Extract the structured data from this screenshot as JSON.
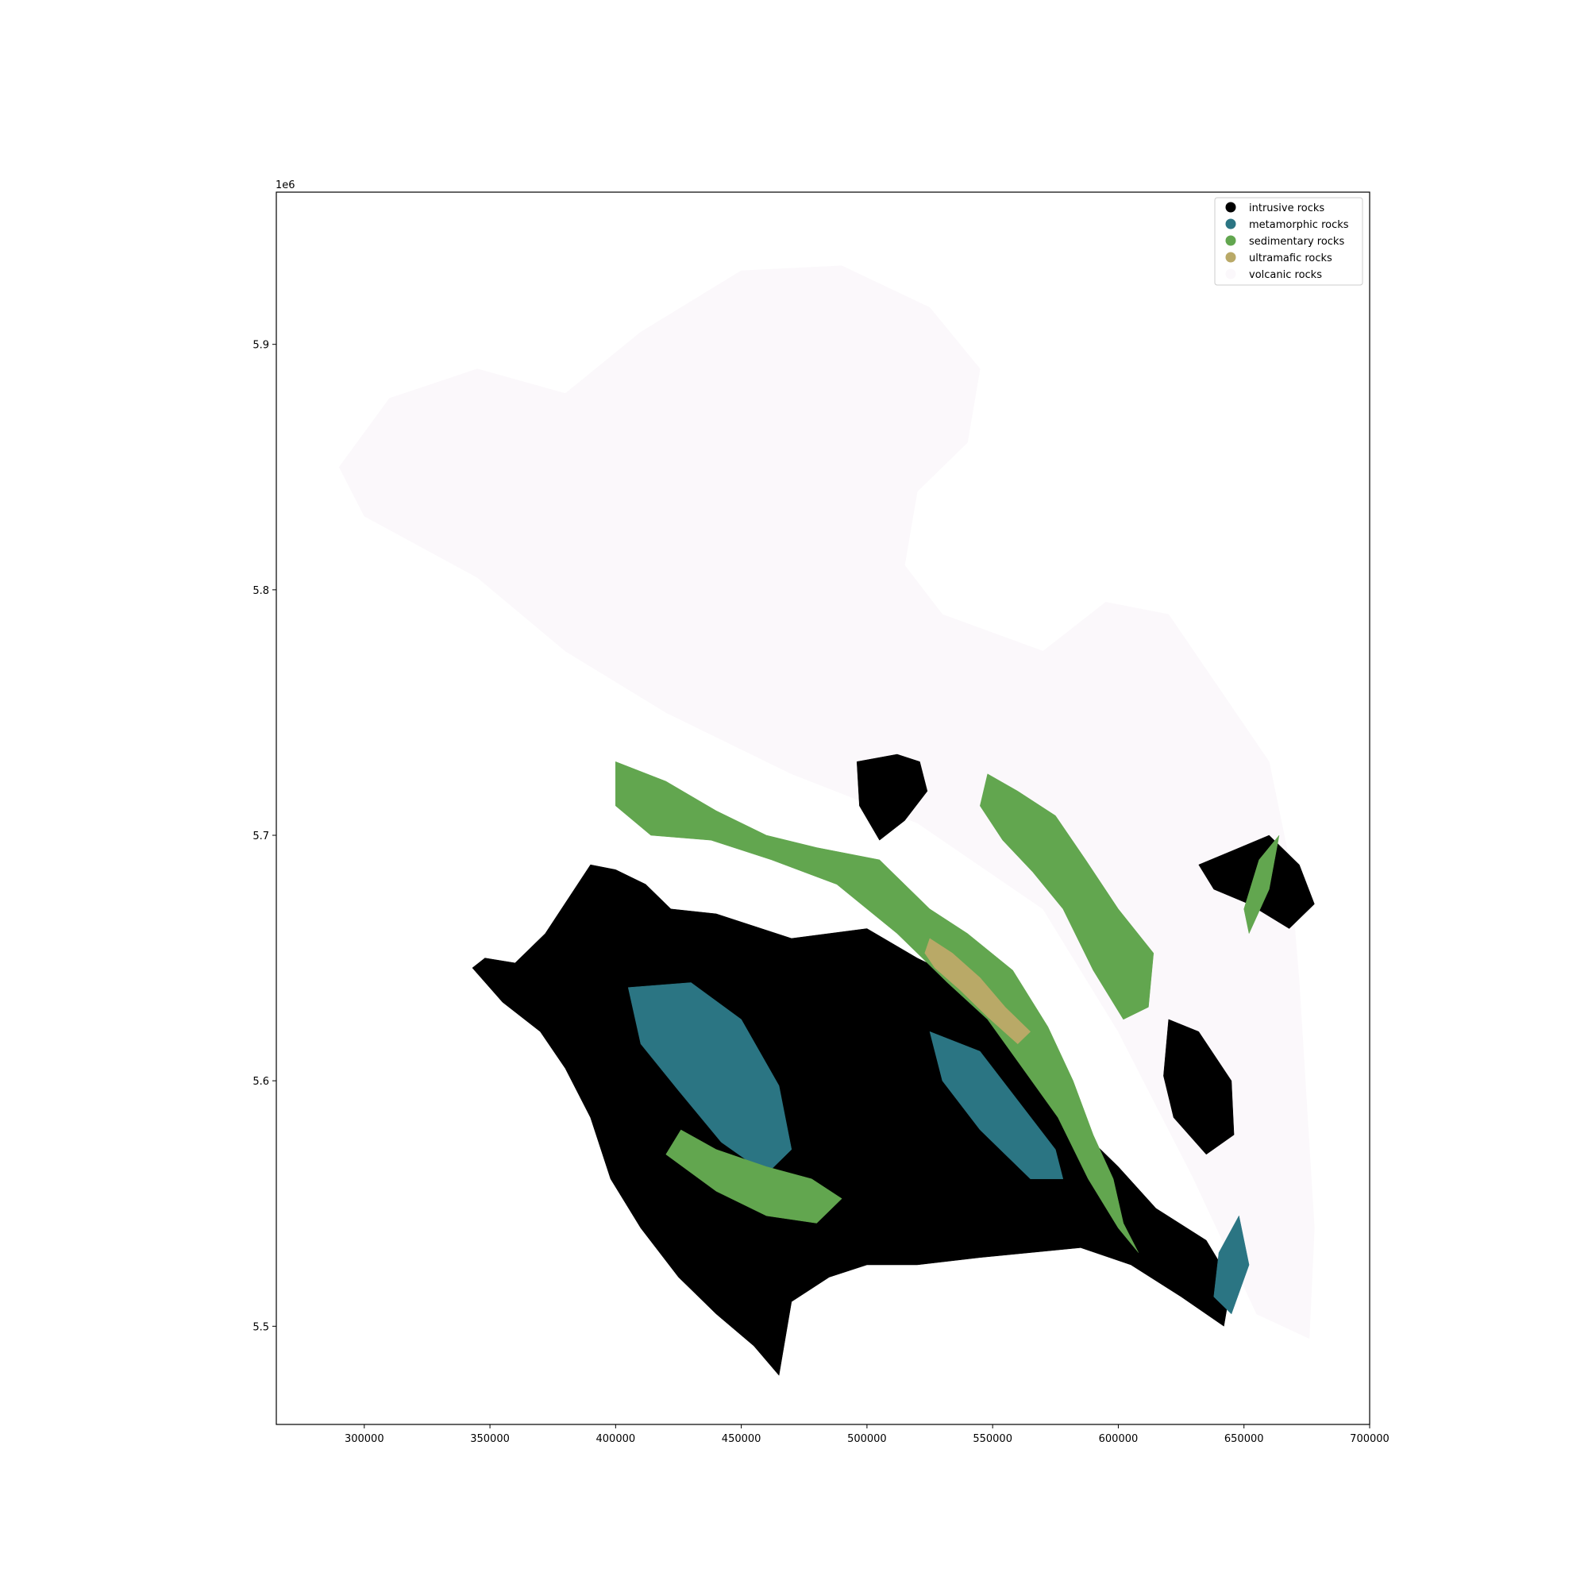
{
  "chart_data": {
    "type": "map",
    "xlim": [
      265000,
      700000
    ],
    "ylim": [
      5460000,
      5962000
    ],
    "x_ticks": [
      {
        "value": 300000,
        "label": "300000"
      },
      {
        "value": 350000,
        "label": "350000"
      },
      {
        "value": 400000,
        "label": "400000"
      },
      {
        "value": 450000,
        "label": "450000"
      },
      {
        "value": 500000,
        "label": "500000"
      },
      {
        "value": 550000,
        "label": "550000"
      },
      {
        "value": 600000,
        "label": "600000"
      },
      {
        "value": 650000,
        "label": "650000"
      },
      {
        "value": 700000,
        "label": "700000"
      }
    ],
    "y_ticks": [
      {
        "value": 5500000,
        "label": "5.5"
      },
      {
        "value": 5600000,
        "label": "5.6"
      },
      {
        "value": 5700000,
        "label": "5.7"
      },
      {
        "value": 5800000,
        "label": "5.8"
      },
      {
        "value": 5900000,
        "label": "5.9"
      }
    ],
    "y_offset_label": "1e6",
    "grid": false,
    "legend_position": "top-right",
    "legend": [
      {
        "label": "intrusive rocks",
        "color": "#000000"
      },
      {
        "label": "metamorphic rocks",
        "color": "#2b7583"
      },
      {
        "label": "sedimentary rocks",
        "color": "#62a64f"
      },
      {
        "label": "ultramafic rocks",
        "color": "#b9a967"
      },
      {
        "label": "volcanic rocks",
        "color": "#fbf8fb"
      }
    ],
    "units": [
      {
        "class": "volcanic rocks",
        "color": "#fbf8fb",
        "rings": [
          [
            [
              290000,
              5850000
            ],
            [
              310000,
              5878000
            ],
            [
              345000,
              5890000
            ],
            [
              380000,
              5880000
            ],
            [
              410000,
              5905000
            ],
            [
              450000,
              5930000
            ],
            [
              490000,
              5932000
            ],
            [
              525000,
              5915000
            ],
            [
              545000,
              5890000
            ],
            [
              540000,
              5860000
            ],
            [
              520000,
              5840000
            ],
            [
              515000,
              5810000
            ],
            [
              530000,
              5790000
            ],
            [
              570000,
              5775000
            ],
            [
              595000,
              5795000
            ],
            [
              620000,
              5790000
            ],
            [
              640000,
              5760000
            ],
            [
              660000,
              5730000
            ],
            [
              668000,
              5690000
            ],
            [
              672000,
              5640000
            ],
            [
              675000,
              5590000
            ],
            [
              678000,
              5540000
            ],
            [
              676000,
              5495000
            ],
            [
              655000,
              5505000
            ],
            [
              630000,
              5560000
            ],
            [
              600000,
              5620000
            ],
            [
              570000,
              5670000
            ],
            [
              520000,
              5705000
            ],
            [
              470000,
              5725000
            ],
            [
              420000,
              5750000
            ],
            [
              380000,
              5775000
            ],
            [
              345000,
              5805000
            ],
            [
              300000,
              5830000
            ]
          ]
        ]
      },
      {
        "class": "intrusive rocks",
        "color": "#000000",
        "rings": [
          [
            [
              343000,
              5646000
            ],
            [
              348000,
              5650000
            ],
            [
              360000,
              5648000
            ],
            [
              372000,
              5660000
            ],
            [
              390000,
              5688000
            ],
            [
              400000,
              5686000
            ],
            [
              412000,
              5680000
            ],
            [
              422000,
              5670000
            ],
            [
              440000,
              5668000
            ],
            [
              470000,
              5658000
            ],
            [
              500000,
              5662000
            ],
            [
              520000,
              5650000
            ],
            [
              540000,
              5640000
            ],
            [
              560000,
              5630000
            ],
            [
              570000,
              5600000
            ],
            [
              585000,
              5580000
            ],
            [
              600000,
              5565000
            ],
            [
              615000,
              5548000
            ],
            [
              635000,
              5535000
            ],
            [
              645000,
              5518000
            ],
            [
              642000,
              5500000
            ],
            [
              625000,
              5512000
            ],
            [
              605000,
              5525000
            ],
            [
              585000,
              5532000
            ],
            [
              565000,
              5530000
            ],
            [
              545000,
              5528000
            ],
            [
              520000,
              5525000
            ],
            [
              500000,
              5525000
            ],
            [
              485000,
              5520000
            ],
            [
              470000,
              5510000
            ],
            [
              465000,
              5480000
            ],
            [
              455000,
              5492000
            ],
            [
              440000,
              5505000
            ],
            [
              425000,
              5520000
            ],
            [
              410000,
              5540000
            ],
            [
              398000,
              5560000
            ],
            [
              390000,
              5585000
            ],
            [
              380000,
              5605000
            ],
            [
              370000,
              5620000
            ],
            [
              355000,
              5632000
            ]
          ]
        ]
      },
      {
        "class": "intrusive rocks",
        "color": "#000000",
        "rings": [
          [
            [
              496000,
              5730000
            ],
            [
              512000,
              5733000
            ],
            [
              521000,
              5730000
            ],
            [
              524000,
              5718000
            ],
            [
              515000,
              5706000
            ],
            [
              505000,
              5698000
            ],
            [
              497000,
              5712000
            ]
          ],
          [
            [
              632000,
              5688000
            ],
            [
              646000,
              5694000
            ],
            [
              660000,
              5700000
            ],
            [
              672000,
              5688000
            ],
            [
              678000,
              5672000
            ],
            [
              668000,
              5662000
            ],
            [
              652000,
              5672000
            ],
            [
              638000,
              5678000
            ]
          ],
          [
            [
              620000,
              5625000
            ],
            [
              632000,
              5620000
            ],
            [
              645000,
              5600000
            ],
            [
              646000,
              5578000
            ],
            [
              635000,
              5570000
            ],
            [
              622000,
              5585000
            ],
            [
              618000,
              5602000
            ]
          ]
        ]
      },
      {
        "class": "metamorphic rocks",
        "color": "#2b7583",
        "rings": [
          [
            [
              405000,
              5638000
            ],
            [
              430000,
              5640000
            ],
            [
              450000,
              5625000
            ],
            [
              465000,
              5598000
            ],
            [
              470000,
              5572000
            ],
            [
              460000,
              5562000
            ],
            [
              442000,
              5575000
            ],
            [
              425000,
              5596000
            ],
            [
              410000,
              5615000
            ]
          ],
          [
            [
              525000,
              5620000
            ],
            [
              545000,
              5612000
            ],
            [
              560000,
              5592000
            ],
            [
              575000,
              5572000
            ],
            [
              578000,
              5560000
            ],
            [
              565000,
              5560000
            ],
            [
              545000,
              5580000
            ],
            [
              530000,
              5600000
            ]
          ],
          [
            [
              640000,
              5530000
            ],
            [
              648000,
              5545000
            ],
            [
              652000,
              5525000
            ],
            [
              645000,
              5505000
            ],
            [
              638000,
              5512000
            ]
          ]
        ]
      },
      {
        "class": "sedimentary rocks",
        "color": "#62a64f",
        "rings": [
          [
            [
              400000,
              5730000
            ],
            [
              420000,
              5722000
            ],
            [
              440000,
              5710000
            ],
            [
              460000,
              5700000
            ],
            [
              480000,
              5695000
            ],
            [
              505000,
              5690000
            ],
            [
              525000,
              5670000
            ],
            [
              540000,
              5660000
            ],
            [
              558000,
              5645000
            ],
            [
              572000,
              5622000
            ],
            [
              582000,
              5600000
            ],
            [
              590000,
              5578000
            ],
            [
              598000,
              5560000
            ],
            [
              602000,
              5542000
            ],
            [
              608000,
              5530000
            ],
            [
              600000,
              5540000
            ],
            [
              588000,
              5560000
            ],
            [
              576000,
              5585000
            ],
            [
              562000,
              5605000
            ],
            [
              548000,
              5625000
            ],
            [
              532000,
              5640000
            ],
            [
              512000,
              5660000
            ],
            [
              488000,
              5680000
            ],
            [
              462000,
              5690000
            ],
            [
              438000,
              5698000
            ],
            [
              414000,
              5700000
            ],
            [
              400000,
              5712000
            ]
          ],
          [
            [
              548000,
              5725000
            ],
            [
              560000,
              5718000
            ],
            [
              575000,
              5708000
            ],
            [
              587000,
              5690000
            ],
            [
              600000,
              5670000
            ],
            [
              614000,
              5652000
            ],
            [
              612000,
              5630000
            ],
            [
              602000,
              5625000
            ],
            [
              590000,
              5645000
            ],
            [
              578000,
              5670000
            ],
            [
              566000,
              5685000
            ],
            [
              554000,
              5698000
            ],
            [
              545000,
              5712000
            ]
          ],
          [
            [
              420000,
              5570000
            ],
            [
              440000,
              5555000
            ],
            [
              460000,
              5545000
            ],
            [
              480000,
              5542000
            ],
            [
              490000,
              5552000
            ],
            [
              478000,
              5560000
            ],
            [
              460000,
              5565000
            ],
            [
              440000,
              5572000
            ],
            [
              426000,
              5580000
            ]
          ],
          [
            [
              650000,
              5670000
            ],
            [
              656000,
              5690000
            ],
            [
              664000,
              5700000
            ],
            [
              660000,
              5678000
            ],
            [
              652000,
              5660000
            ]
          ]
        ]
      },
      {
        "class": "ultramafic rocks",
        "color": "#b9a967",
        "rings": [
          [
            [
              525000,
              5658000
            ],
            [
              534000,
              5652000
            ],
            [
              545000,
              5642000
            ],
            [
              555000,
              5630000
            ],
            [
              565000,
              5620000
            ],
            [
              560000,
              5615000
            ],
            [
              548000,
              5626000
            ],
            [
              537000,
              5637000
            ],
            [
              527000,
              5646000
            ],
            [
              523000,
              5652000
            ]
          ]
        ]
      }
    ]
  }
}
